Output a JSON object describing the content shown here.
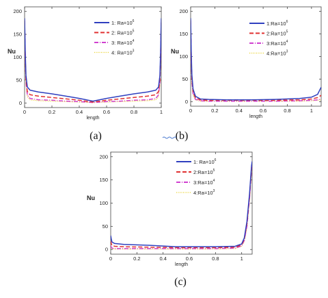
{
  "chart_data": [
    {
      "type": "line",
      "caption": "(a)",
      "xlabel": "length",
      "ylabel": "Nu",
      "xlim": [
        0,
        1
      ],
      "ylim": [
        -10,
        210
      ],
      "xticks": [
        "0",
        "0.2",
        "0.4",
        "0.6",
        "0.8",
        "1"
      ],
      "yticks": [
        "0",
        "50",
        "100",
        "150",
        "200"
      ],
      "legend": "top-right",
      "series": [
        {
          "name": "1: Ra=10",
          "exp": "6",
          "color": "#2f3fbf",
          "dash": "",
          "x": [
            0,
            0.005,
            0.01,
            0.02,
            0.04,
            0.1,
            0.2,
            0.3,
            0.4,
            0.5,
            0.6,
            0.7,
            0.8,
            0.9,
            0.96,
            0.98,
            0.99,
            0.995,
            1
          ],
          "y": [
            185,
            110,
            60,
            35,
            28,
            24,
            20,
            15,
            10,
            4,
            10,
            15,
            20,
            24,
            28,
            35,
            60,
            110,
            185
          ]
        },
        {
          "name": "2: Ra=10",
          "exp": "5",
          "color": "#e03030",
          "dash": "6,3",
          "x": [
            0,
            0.005,
            0.01,
            0.02,
            0.04,
            0.1,
            0.2,
            0.3,
            0.4,
            0.5,
            0.6,
            0.7,
            0.8,
            0.9,
            0.96,
            0.98,
            0.99,
            0.995,
            1
          ],
          "y": [
            180,
            100,
            50,
            25,
            18,
            15,
            12,
            9,
            6,
            2,
            6,
            9,
            12,
            15,
            18,
            25,
            50,
            100,
            180
          ]
        },
        {
          "name": "3: Ra=10",
          "exp": "4",
          "color": "#d040d0",
          "dash": "6,2,1,2",
          "x": [
            0,
            0.005,
            0.01,
            0.02,
            0.04,
            0.1,
            0.2,
            0.3,
            0.4,
            0.5,
            0.6,
            0.7,
            0.8,
            0.9,
            0.96,
            0.98,
            0.99,
            0.995,
            1
          ],
          "y": [
            175,
            95,
            45,
            18,
            10,
            7,
            6,
            4,
            3,
            1,
            3,
            4,
            6,
            7,
            10,
            18,
            45,
            95,
            175
          ]
        },
        {
          "name": "4: Ra=10",
          "exp": "3",
          "color": "#e8d020",
          "dash": "1,1.5",
          "x": [
            0,
            0.005,
            0.01,
            0.02,
            0.04,
            0.1,
            0.2,
            0.3,
            0.4,
            0.5,
            0.6,
            0.7,
            0.8,
            0.9,
            0.96,
            0.98,
            0.99,
            0.995,
            1
          ],
          "y": [
            170,
            90,
            40,
            14,
            7,
            5,
            4,
            3,
            2,
            1,
            2,
            3,
            4,
            5,
            7,
            14,
            40,
            90,
            170
          ]
        }
      ]
    },
    {
      "type": "line",
      "caption": "(b)",
      "xlabel": "length",
      "ylabel": "Nu",
      "xlim": [
        0,
        1.08
      ],
      "ylim": [
        -10,
        210
      ],
      "xticks": [
        "0",
        "0.2",
        "0.4",
        "0.6",
        "0.8",
        "1"
      ],
      "yticks": [
        "0",
        "50",
        "100",
        "150",
        "200"
      ],
      "legend": "top-right",
      "series": [
        {
          "name": "1:Ra=10",
          "exp": "6",
          "color": "#2f3fbf",
          "dash": "",
          "x": [
            0,
            0.005,
            0.01,
            0.02,
            0.04,
            0.08,
            0.15,
            0.3,
            0.5,
            0.7,
            0.9,
            1.0,
            1.05,
            1.08
          ],
          "y": [
            185,
            110,
            60,
            28,
            12,
            6,
            5,
            4,
            4,
            5,
            7,
            10,
            16,
            32
          ]
        },
        {
          "name": "2:Ra=10",
          "exp": "5",
          "color": "#e03030",
          "dash": "6,3",
          "x": [
            0,
            0.005,
            0.01,
            0.02,
            0.04,
            0.08,
            0.15,
            0.3,
            0.5,
            0.7,
            0.9,
            1.0,
            1.05,
            1.08
          ],
          "y": [
            180,
            100,
            50,
            22,
            8,
            4,
            3,
            3,
            3,
            3,
            4,
            6,
            9,
            14
          ]
        },
        {
          "name": "3:Ra=10",
          "exp": "4",
          "color": "#d040d0",
          "dash": "6,2,1,2",
          "x": [
            0,
            0.005,
            0.01,
            0.02,
            0.04,
            0.08,
            0.15,
            0.3,
            0.5,
            0.7,
            0.9,
            1.0,
            1.05,
            1.08
          ],
          "y": [
            175,
            95,
            45,
            18,
            5,
            2,
            1,
            1,
            1,
            1,
            2,
            3,
            4,
            6
          ]
        },
        {
          "name": "4:Ra=10",
          "exp": "3",
          "color": "#e8d020",
          "dash": "1,1.5",
          "x": [
            0,
            0.005,
            0.01,
            0.02,
            0.04,
            0.08,
            0.15,
            0.3,
            0.5,
            0.7,
            0.9,
            1.0,
            1.05,
            1.08
          ],
          "y": [
            170,
            90,
            40,
            15,
            4,
            1,
            1,
            1,
            1,
            1,
            1,
            2,
            3,
            4
          ]
        }
      ]
    },
    {
      "type": "line",
      "caption": "(c)",
      "xlabel": "length",
      "ylabel": "Nu",
      "xlim": [
        0,
        1.08
      ],
      "ylim": [
        -10,
        210
      ],
      "xticks": [
        "0",
        "0.2",
        "0.4",
        "0.6",
        "0.8",
        "1"
      ],
      "yticks": [
        "0",
        "50",
        "100",
        "150",
        "200"
      ],
      "legend": "top-right",
      "series": [
        {
          "name": "1: Ra=10",
          "exp": "6",
          "color": "#2f3fbf",
          "dash": "",
          "x": [
            0,
            0.005,
            0.01,
            0.03,
            0.1,
            0.3,
            0.5,
            0.6,
            0.8,
            0.95,
            1.0,
            1.02,
            1.04,
            1.06,
            1.07,
            1.075,
            1.08
          ],
          "y": [
            30,
            22,
            16,
            13,
            11,
            9,
            6,
            6,
            6,
            7,
            12,
            25,
            60,
            120,
            160,
            180,
            190
          ]
        },
        {
          "name": "2:Ra=10",
          "exp": "5",
          "color": "#e03030",
          "dash": "6,3",
          "x": [
            0,
            0.005,
            0.01,
            0.03,
            0.1,
            0.3,
            0.5,
            0.6,
            0.8,
            0.95,
            1.0,
            1.02,
            1.04,
            1.06,
            1.07,
            1.075,
            1.08
          ],
          "y": [
            18,
            12,
            9,
            7,
            6,
            5,
            4,
            4,
            4,
            5,
            10,
            22,
            55,
            115,
            155,
            175,
            185
          ]
        },
        {
          "name": "3:Ra=10",
          "exp": "4",
          "color": "#d040d0",
          "dash": "6,2,1,2",
          "x": [
            0,
            0.005,
            0.01,
            0.03,
            0.1,
            0.3,
            0.5,
            0.6,
            0.8,
            0.95,
            1.0,
            1.02,
            1.04,
            1.06,
            1.07,
            1.075,
            1.08
          ],
          "y": [
            8,
            5,
            3,
            2,
            2,
            2,
            2,
            2,
            2,
            3,
            8,
            20,
            50,
            110,
            150,
            170,
            180
          ]
        },
        {
          "name": "4:Ra=10",
          "exp": "3",
          "color": "#e8d020",
          "dash": "1,1.5",
          "x": [
            0,
            0.005,
            0.01,
            0.03,
            0.1,
            0.3,
            0.5,
            0.6,
            0.8,
            0.95,
            1.0,
            1.02,
            1.04,
            1.06,
            1.07,
            1.075,
            1.08
          ],
          "y": [
            5,
            3,
            2,
            1,
            1,
            1,
            1,
            1,
            1,
            2,
            7,
            18,
            48,
            105,
            145,
            165,
            175
          ]
        }
      ]
    }
  ]
}
